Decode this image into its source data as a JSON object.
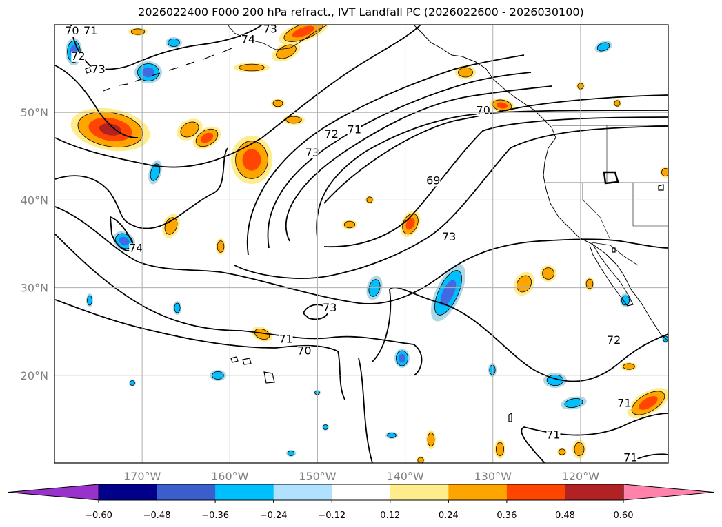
{
  "title": "2026022400 F000 200 hPa refract., IVT Landfall PC (2026022600 - 2026030100)",
  "map": {
    "projection": "equirectangular",
    "lon_range": [
      -180,
      -110
    ],
    "lat_range": [
      10,
      60
    ],
    "grid": true,
    "lat_ticks": [
      {
        "value": 20,
        "label": "20°N"
      },
      {
        "value": 30,
        "label": "30°N"
      },
      {
        "value": 40,
        "label": "40°N"
      },
      {
        "value": 50,
        "label": "50°N"
      }
    ],
    "lon_ticks": [
      {
        "value": -170,
        "label": "170°W"
      },
      {
        "value": -160,
        "label": "160°W"
      },
      {
        "value": -150,
        "label": "150°W"
      },
      {
        "value": -140,
        "label": "140°W"
      },
      {
        "value": -130,
        "label": "130°W"
      },
      {
        "value": -120,
        "label": "120°W"
      }
    ],
    "contour_labels": [
      {
        "text": "70",
        "lon": -178.0,
        "lat": 58.9
      },
      {
        "text": "71",
        "lon": -175.9,
        "lat": 58.9
      },
      {
        "text": "74",
        "lon": -157.9,
        "lat": 57.9
      },
      {
        "text": "73",
        "lon": -155.4,
        "lat": 59.1
      },
      {
        "text": "72",
        "lon": -177.3,
        "lat": 56.0
      },
      {
        "text": "73",
        "lon": -175.0,
        "lat": 54.5
      },
      {
        "text": "70",
        "lon": -131.1,
        "lat": 49.8
      },
      {
        "text": "71",
        "lon": -145.8,
        "lat": 47.6
      },
      {
        "text": "72",
        "lon": -148.4,
        "lat": 47.1
      },
      {
        "text": "73",
        "lon": -150.6,
        "lat": 45.0
      },
      {
        "text": "69",
        "lon": -136.8,
        "lat": 41.8
      },
      {
        "text": "73",
        "lon": -135.0,
        "lat": 35.4
      },
      {
        "text": "74",
        "lon": -170.7,
        "lat": 34.1
      },
      {
        "text": "73",
        "lon": -148.6,
        "lat": 27.3
      },
      {
        "text": "71",
        "lon": -153.6,
        "lat": 23.7
      },
      {
        "text": "70",
        "lon": -151.5,
        "lat": 22.4
      },
      {
        "text": "72",
        "lon": -116.2,
        "lat": 23.6
      },
      {
        "text": "71",
        "lon": -115.0,
        "lat": 16.4
      },
      {
        "text": "71",
        "lon": -123.1,
        "lat": 12.8
      },
      {
        "text": "71",
        "lon": -114.3,
        "lat": 10.2
      }
    ],
    "colors": {
      "orange": "#ffa500",
      "yellow": "#ffec8b",
      "red": "#ff4500",
      "darkred": "#b22222",
      "cyan": "#00bfff",
      "lightblue": "#add8e6",
      "royal": "#4169e1"
    }
  },
  "colorbar": {
    "boundaries": [
      -0.6,
      -0.48,
      -0.36,
      -0.24,
      -0.12,
      0.12,
      0.24,
      0.36,
      0.48,
      0.6
    ],
    "tick_labels": [
      "−0.60",
      "−0.48",
      "−0.36",
      "−0.24",
      "−0.12",
      "0.12",
      "0.24",
      "0.36",
      "0.48",
      "0.60"
    ],
    "colors": [
      "#9932cc",
      "#00008b",
      "#3a5fcd",
      "#00bfff",
      "#b0e2ff",
      "#ffffff",
      "#ffec8b",
      "#ffa500",
      "#ff4500",
      "#b22222",
      "#ff82ab"
    ],
    "extend": "both"
  }
}
